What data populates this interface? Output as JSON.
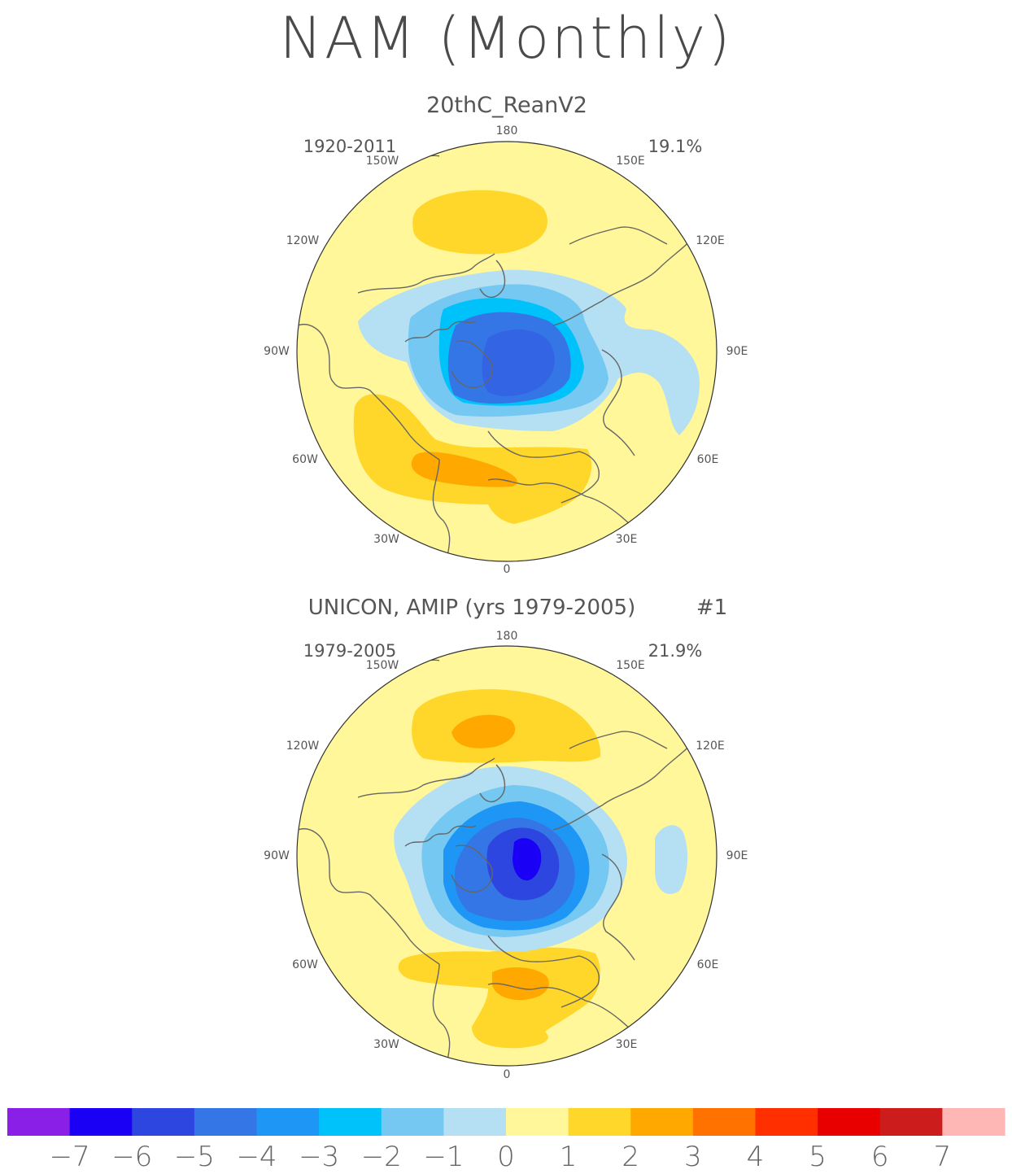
{
  "title": "NAM (Monthly)",
  "panels": [
    {
      "subtitle": "20thC_ReanV2",
      "period": "1920-2011",
      "variance": "19.1%",
      "extra": ""
    },
    {
      "subtitle": "UNICON, AMIP (yrs 1979-2005)",
      "period": "1979-2005",
      "variance": "21.9%",
      "extra": "#1"
    }
  ],
  "longitude_labels": {
    "top": "180",
    "top_left": "150W",
    "top_right": "150E",
    "upper_left": "120W",
    "upper_right": "120E",
    "left": "90W",
    "right": "90E",
    "lower_left": "60W",
    "lower_right": "60E",
    "bottom_left": "30W",
    "bottom_right": "30E",
    "bottom": "0"
  },
  "colorbar": {
    "colors": [
      "#8a1fe8",
      "#1a00f5",
      "#2d46e0",
      "#3576e6",
      "#1e96f6",
      "#00c2fa",
      "#74c8f2",
      "#b5dff2",
      "#fff799",
      "#ffd62a",
      "#ffa800",
      "#ff7200",
      "#ff2f00",
      "#e80000",
      "#cc1c1c",
      "#ffb7b6"
    ],
    "labels": [
      "-7",
      "-6",
      "-5",
      "-4",
      "-3",
      "-2",
      "-1",
      "0",
      "1",
      "2",
      "3",
      "4",
      "5",
      "6",
      "7"
    ]
  },
  "colors": {
    "background": "#fff799",
    "coastline": "#666666"
  }
}
